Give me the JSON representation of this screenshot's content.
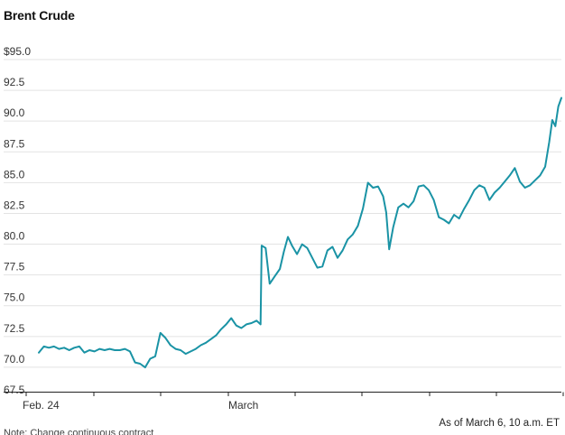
{
  "chart_data": {
    "type": "line",
    "title": "Brent Crude",
    "xlabel": "",
    "ylabel": "",
    "ylim": [
      67.5,
      95.0
    ],
    "yticks": [
      "$95.0",
      "92.5",
      "90.0",
      "87.5",
      "85.0",
      "82.5",
      "80.0",
      "77.5",
      "75.0",
      "72.5",
      "70.0",
      "67.5"
    ],
    "x_tick_labels": [
      "Feb. 24",
      "March"
    ],
    "grid": true,
    "source_note": "As of March 6, 10 a.m. ET",
    "footnote": "Note: Change continuous contract",
    "series": [
      {
        "color": "#1a93a5",
        "points": [
          [
            0.0,
            70.6
          ],
          [
            0.5,
            71.1
          ],
          [
            1.0,
            71.0
          ],
          [
            1.5,
            71.1
          ],
          [
            2.0,
            70.9
          ],
          [
            2.5,
            71.0
          ],
          [
            3.0,
            70.8
          ],
          [
            3.5,
            71.0
          ],
          [
            4.0,
            71.1
          ],
          [
            4.5,
            70.6
          ],
          [
            5.0,
            70.8
          ],
          [
            5.5,
            70.7
          ],
          [
            6.0,
            70.9
          ],
          [
            6.5,
            70.8
          ],
          [
            7.0,
            70.9
          ],
          [
            7.5,
            70.8
          ],
          [
            8.0,
            70.8
          ],
          [
            8.5,
            70.9
          ],
          [
            9.0,
            70.7
          ],
          [
            9.5,
            69.8
          ],
          [
            10.0,
            69.7
          ],
          [
            10.5,
            69.4
          ],
          [
            11.0,
            70.1
          ],
          [
            11.5,
            70.3
          ],
          [
            12.0,
            72.2
          ],
          [
            12.5,
            71.8
          ],
          [
            13.0,
            71.2
          ],
          [
            13.5,
            70.9
          ],
          [
            14.0,
            70.8
          ],
          [
            14.5,
            70.5
          ],
          [
            15.0,
            70.7
          ],
          [
            15.5,
            70.9
          ],
          [
            16.0,
            71.2
          ],
          [
            16.5,
            71.4
          ],
          [
            17.0,
            71.7
          ],
          [
            17.5,
            72.0
          ],
          [
            18.0,
            72.5
          ],
          [
            18.5,
            72.9
          ],
          [
            19.0,
            73.4
          ],
          [
            19.5,
            72.8
          ],
          [
            20.0,
            72.6
          ],
          [
            20.5,
            72.9
          ],
          [
            21.0,
            73.0
          ],
          [
            21.5,
            73.2
          ],
          [
            21.9,
            72.9
          ],
          [
            22.0,
            79.3
          ],
          [
            22.4,
            79.1
          ],
          [
            22.8,
            76.2
          ],
          [
            23.3,
            76.8
          ],
          [
            23.8,
            77.4
          ],
          [
            24.2,
            78.8
          ],
          [
            24.6,
            80.0
          ],
          [
            25.0,
            79.3
          ],
          [
            25.5,
            78.6
          ],
          [
            26.0,
            79.4
          ],
          [
            26.5,
            79.1
          ],
          [
            27.0,
            78.3
          ],
          [
            27.5,
            77.5
          ],
          [
            28.0,
            77.6
          ],
          [
            28.5,
            78.9
          ],
          [
            29.0,
            79.2
          ],
          [
            29.5,
            78.3
          ],
          [
            30.0,
            78.9
          ],
          [
            30.5,
            79.8
          ],
          [
            31.0,
            80.2
          ],
          [
            31.5,
            80.9
          ],
          [
            32.0,
            82.3
          ],
          [
            32.5,
            84.4
          ],
          [
            33.0,
            84.0
          ],
          [
            33.5,
            84.1
          ],
          [
            34.0,
            83.3
          ],
          [
            34.3,
            82.0
          ],
          [
            34.6,
            79.0
          ],
          [
            35.0,
            80.8
          ],
          [
            35.5,
            82.4
          ],
          [
            36.0,
            82.7
          ],
          [
            36.5,
            82.4
          ],
          [
            37.0,
            82.9
          ],
          [
            37.5,
            84.1
          ],
          [
            38.0,
            84.2
          ],
          [
            38.5,
            83.8
          ],
          [
            39.0,
            83.0
          ],
          [
            39.5,
            81.6
          ],
          [
            40.0,
            81.4
          ],
          [
            40.5,
            81.1
          ],
          [
            41.0,
            81.8
          ],
          [
            41.5,
            81.5
          ],
          [
            42.0,
            82.3
          ],
          [
            42.5,
            83.0
          ],
          [
            43.0,
            83.8
          ],
          [
            43.5,
            84.2
          ],
          [
            44.0,
            84.0
          ],
          [
            44.5,
            83.0
          ],
          [
            45.0,
            83.6
          ],
          [
            45.5,
            84.0
          ],
          [
            46.0,
            84.5
          ],
          [
            46.5,
            85.0
          ],
          [
            47.0,
            85.6
          ],
          [
            47.5,
            84.5
          ],
          [
            48.0,
            84.0
          ],
          [
            48.5,
            84.2
          ],
          [
            49.0,
            84.6
          ],
          [
            49.5,
            85.0
          ],
          [
            50.0,
            85.7
          ],
          [
            50.4,
            87.7
          ],
          [
            50.7,
            89.5
          ],
          [
            51.0,
            89.0
          ],
          [
            51.3,
            90.6
          ],
          [
            51.6,
            91.3
          ]
        ]
      }
    ]
  }
}
